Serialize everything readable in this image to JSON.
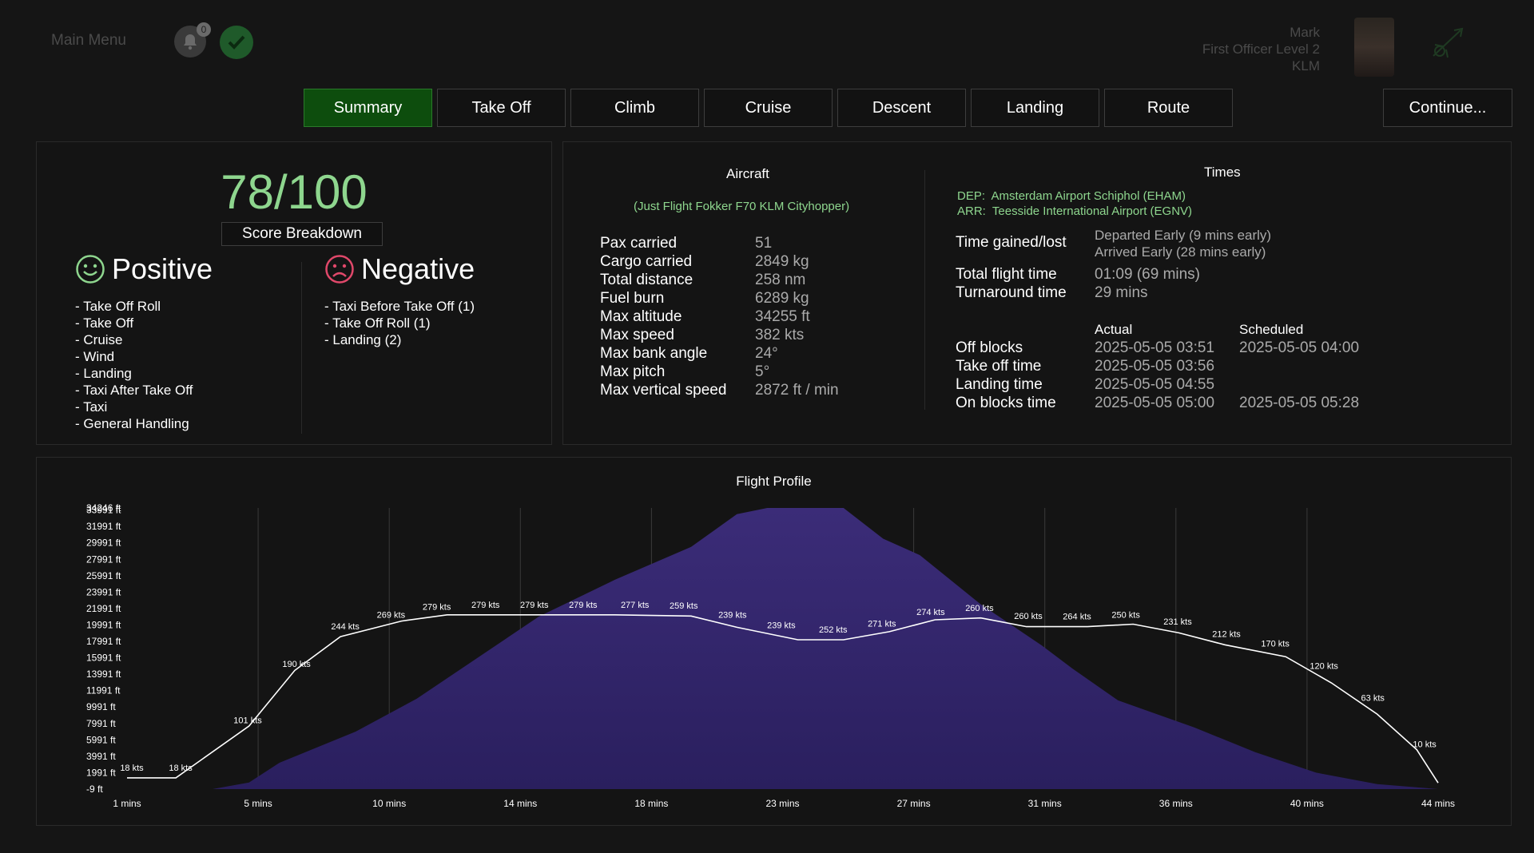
{
  "header": {
    "main_menu": "Main Menu",
    "notification_count": "0",
    "user_name": "Mark",
    "user_rank": "First Officer Level 2",
    "user_airline": "KLM"
  },
  "tabs": [
    {
      "label": "Summary",
      "active": true
    },
    {
      "label": "Take Off",
      "active": false
    },
    {
      "label": "Climb",
      "active": false
    },
    {
      "label": "Cruise",
      "active": false
    },
    {
      "label": "Descent",
      "active": false
    },
    {
      "label": "Landing",
      "active": false
    },
    {
      "label": "Route",
      "active": false
    }
  ],
  "continue_label": "Continue...",
  "score": {
    "value": "78/100",
    "breakdown_label": "Score Breakdown",
    "positive_title": "Positive",
    "negative_title": "Negative",
    "positive": [
      "- Take Off Roll",
      "- Take Off",
      "- Cruise",
      "- Wind",
      "- Landing",
      "- Taxi After Take Off",
      "- Taxi",
      "- General Handling"
    ],
    "negative": [
      "- Taxi Before Take Off (1)",
      "- Take Off Roll (1)",
      "- Landing (2)"
    ]
  },
  "aircraft": {
    "title": "Aircraft",
    "name": "(Just Flight Fokker F70 KLM Cityhopper)",
    "stats": [
      {
        "label": "Pax carried",
        "value": "51"
      },
      {
        "label": "Cargo carried",
        "value": "2849 kg"
      },
      {
        "label": "Total distance",
        "value": "258 nm"
      },
      {
        "label": "Fuel burn",
        "value": "6289 kg"
      },
      {
        "label": "Max altitude",
        "value": "34255 ft"
      },
      {
        "label": "Max speed",
        "value": "382 kts"
      },
      {
        "label": "Max bank angle",
        "value": "24°"
      },
      {
        "label": "Max pitch",
        "value": "5°"
      },
      {
        "label": "Max vertical speed",
        "value": "2872 ft / min"
      }
    ]
  },
  "times": {
    "title": "Times",
    "dep_label": "DEP:",
    "dep": "Amsterdam Airport Schiphol (EHAM)",
    "arr_label": "ARR:",
    "arr": "Teesside International Airport (EGNV)",
    "gained_label": "Time gained/lost",
    "gained_1": "Departed Early (9 mins early)",
    "gained_2": "Arrived Early (28 mins early)",
    "total_label": "Total flight time",
    "total": "01:09 (69 mins)",
    "turnaround_label": "Turnaround time",
    "turnaround": "29 mins",
    "actual_header": "Actual",
    "scheduled_header": "Scheduled",
    "rows": [
      {
        "label": "Off blocks",
        "actual": "2025-05-05 03:51",
        "scheduled": "2025-05-05 04:00"
      },
      {
        "label": "Take off time",
        "actual": "2025-05-05 03:56",
        "scheduled": ""
      },
      {
        "label": "Landing time",
        "actual": "2025-05-05 04:55",
        "scheduled": ""
      },
      {
        "label": "On blocks time",
        "actual": "2025-05-05 05:00",
        "scheduled": "2025-05-05 05:28"
      }
    ]
  },
  "chart_data": {
    "type": "area",
    "title": "Flight Profile",
    "x_ticks": [
      "1 mins",
      "5 mins",
      "10 mins",
      "14 mins",
      "18 mins",
      "23 mins",
      "27 mins",
      "31 mins",
      "36 mins",
      "40 mins",
      "44 mins"
    ],
    "y_ticks": [
      "-9 ft",
      "1991 ft",
      "3991 ft",
      "5991 ft",
      "7991 ft",
      "9991 ft",
      "11991 ft",
      "13991 ft",
      "15991 ft",
      "17991 ft",
      "19991 ft",
      "21991 ft",
      "23991 ft",
      "25991 ft",
      "27991 ft",
      "29991 ft",
      "31991 ft",
      "33991 ft",
      "34246 ft"
    ],
    "ylim": [
      -9,
      34246
    ],
    "series": [
      {
        "name": "Altitude",
        "color": "#3d2f7a",
        "points": [
          [
            1,
            -9
          ],
          [
            3.8,
            -9
          ],
          [
            5,
            800
          ],
          [
            6,
            3200
          ],
          [
            8.5,
            7000
          ],
          [
            10.5,
            11000
          ],
          [
            12.5,
            16000
          ],
          [
            14.5,
            21000
          ],
          [
            17,
            25500
          ],
          [
            19.5,
            29500
          ],
          [
            21,
            33500
          ],
          [
            22,
            34246
          ],
          [
            24.5,
            34246
          ],
          [
            25.8,
            30500
          ],
          [
            27,
            28500
          ],
          [
            29,
            22500
          ],
          [
            31,
            17500
          ],
          [
            32,
            14700
          ],
          [
            33.5,
            10800
          ],
          [
            36,
            7500
          ],
          [
            38,
            4500
          ],
          [
            40,
            2000
          ],
          [
            42,
            600
          ],
          [
            44,
            -9
          ]
        ]
      },
      {
        "name": "Speed",
        "color": "#ffffff",
        "points": [
          [
            1,
            18
          ],
          [
            2.6,
            18
          ],
          [
            5,
            101
          ],
          [
            6.5,
            190
          ],
          [
            8,
            244
          ],
          [
            10,
            269
          ],
          [
            11.5,
            279
          ],
          [
            13,
            279
          ],
          [
            15,
            279
          ],
          [
            17,
            279
          ],
          [
            19.5,
            277
          ],
          [
            21,
            259
          ],
          [
            23,
            239
          ],
          [
            24.5,
            239
          ],
          [
            26,
            252
          ],
          [
            27.5,
            271
          ],
          [
            29,
            274
          ],
          [
            30.5,
            260
          ],
          [
            32.5,
            260
          ],
          [
            34,
            264
          ],
          [
            35.5,
            250
          ],
          [
            37,
            231
          ],
          [
            39,
            212
          ],
          [
            40.5,
            170
          ],
          [
            42,
            120
          ],
          [
            43.3,
            63
          ],
          [
            44,
            10
          ]
        ],
        "labels": [
          {
            "x": 1,
            "text": "18 kts"
          },
          {
            "x": 2.6,
            "text": "18 kts"
          },
          {
            "x": 4.8,
            "text": "101 kts"
          },
          {
            "x": 6.4,
            "text": "190 kts"
          },
          {
            "x": 8,
            "text": "244 kts"
          },
          {
            "x": 9.5,
            "text": "269 kts"
          },
          {
            "x": 11,
            "text": "279 kts"
          },
          {
            "x": 12.6,
            "text": "279 kts"
          },
          {
            "x": 14.2,
            "text": "279 kts"
          },
          {
            "x": 15.8,
            "text": "279 kts"
          },
          {
            "x": 17.5,
            "text": "277 kts"
          },
          {
            "x": 19.1,
            "text": "259 kts"
          },
          {
            "x": 20.7,
            "text": "239 kts"
          },
          {
            "x": 22.3,
            "text": "239 kts"
          },
          {
            "x": 24,
            "text": "252 kts"
          },
          {
            "x": 25.6,
            "text": "271 kts"
          },
          {
            "x": 27.2,
            "text": "274 kts"
          },
          {
            "x": 28.8,
            "text": "260 kts"
          },
          {
            "x": 30.4,
            "text": "260 kts"
          },
          {
            "x": 32,
            "text": "264 kts"
          },
          {
            "x": 33.6,
            "text": "250 kts"
          },
          {
            "x": 35.3,
            "text": "231 kts"
          },
          {
            "x": 36.9,
            "text": "212 kts"
          },
          {
            "x": 38.5,
            "text": "170 kts"
          },
          {
            "x": 40.1,
            "text": "120 kts"
          },
          {
            "x": 41.7,
            "text": "63 kts"
          },
          {
            "x": 43.4,
            "text": "10 kts"
          }
        ]
      }
    ]
  }
}
